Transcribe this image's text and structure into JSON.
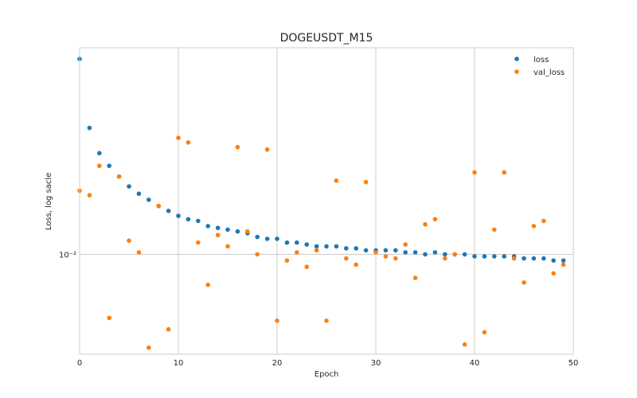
{
  "chart_data": {
    "type": "scatter",
    "title": "DOGEUSDT_M15",
    "xlabel": "Epoch",
    "ylabel": "Loss, log sacle",
    "yscale": "log",
    "xlim": [
      0,
      50
    ],
    "ylim": [
      0.0061,
      0.0278
    ],
    "x_ticks": [
      0,
      10,
      20,
      30,
      40,
      50
    ],
    "y_ticks": [
      {
        "value": 0.01,
        "label": "10⁻²"
      }
    ],
    "grid": true,
    "legend_position": "top-right",
    "series": [
      {
        "name": "loss",
        "color": "#1f77b4",
        "x": [
          0,
          1,
          2,
          3,
          4,
          5,
          6,
          7,
          8,
          9,
          10,
          11,
          12,
          13,
          14,
          15,
          16,
          17,
          18,
          19,
          20,
          21,
          22,
          23,
          24,
          25,
          26,
          27,
          28,
          29,
          30,
          31,
          32,
          33,
          34,
          35,
          36,
          37,
          38,
          39,
          40,
          41,
          42,
          43,
          44,
          45,
          46,
          47,
          48,
          49
        ],
        "y": [
          0.0263,
          0.0187,
          0.0165,
          0.0155,
          0.0147,
          0.014,
          0.0135,
          0.0131,
          0.0127,
          0.0124,
          0.0121,
          0.0119,
          0.0118,
          0.0115,
          0.0114,
          0.0113,
          0.0112,
          0.0111,
          0.0109,
          0.0108,
          0.0108,
          0.0106,
          0.0106,
          0.0105,
          0.0104,
          0.0104,
          0.0104,
          0.0103,
          0.0103,
          0.0102,
          0.0102,
          0.0102,
          0.0102,
          0.0101,
          0.0101,
          0.01,
          0.0101,
          0.01,
          0.01,
          0.01,
          0.0099,
          0.0099,
          0.0099,
          0.0099,
          0.0099,
          0.0098,
          0.0098,
          0.0098,
          0.0097,
          0.0097
        ]
      },
      {
        "name": "val_loss",
        "color": "#ff7f0e",
        "x": [
          0,
          1,
          2,
          3,
          4,
          5,
          6,
          7,
          8,
          9,
          10,
          11,
          12,
          13,
          14,
          15,
          16,
          17,
          18,
          19,
          20,
          21,
          22,
          23,
          24,
          25,
          26,
          27,
          28,
          29,
          30,
          31,
          32,
          33,
          34,
          35,
          36,
          37,
          38,
          39,
          40,
          41,
          42,
          43,
          44,
          45,
          46,
          47,
          48,
          49
        ],
        "y": [
          0.0137,
          0.0134,
          0.0155,
          0.0073,
          0.0147,
          0.0107,
          0.0101,
          0.0063,
          0.0127,
          0.0069,
          0.0178,
          0.0174,
          0.0106,
          0.0086,
          0.011,
          0.0104,
          0.017,
          0.0112,
          0.01,
          0.0168,
          0.0072,
          0.0097,
          0.0101,
          0.0094,
          0.0102,
          0.0072,
          0.0144,
          0.0098,
          0.0095,
          0.0143,
          0.0101,
          0.0099,
          0.0098,
          0.0105,
          0.0089,
          0.0116,
          0.0119,
          0.0098,
          0.01,
          0.0064,
          0.015,
          0.0068,
          0.0113,
          0.015,
          0.0098,
          0.0087,
          0.0115,
          0.0118,
          0.0091,
          0.0095
        ]
      }
    ]
  }
}
